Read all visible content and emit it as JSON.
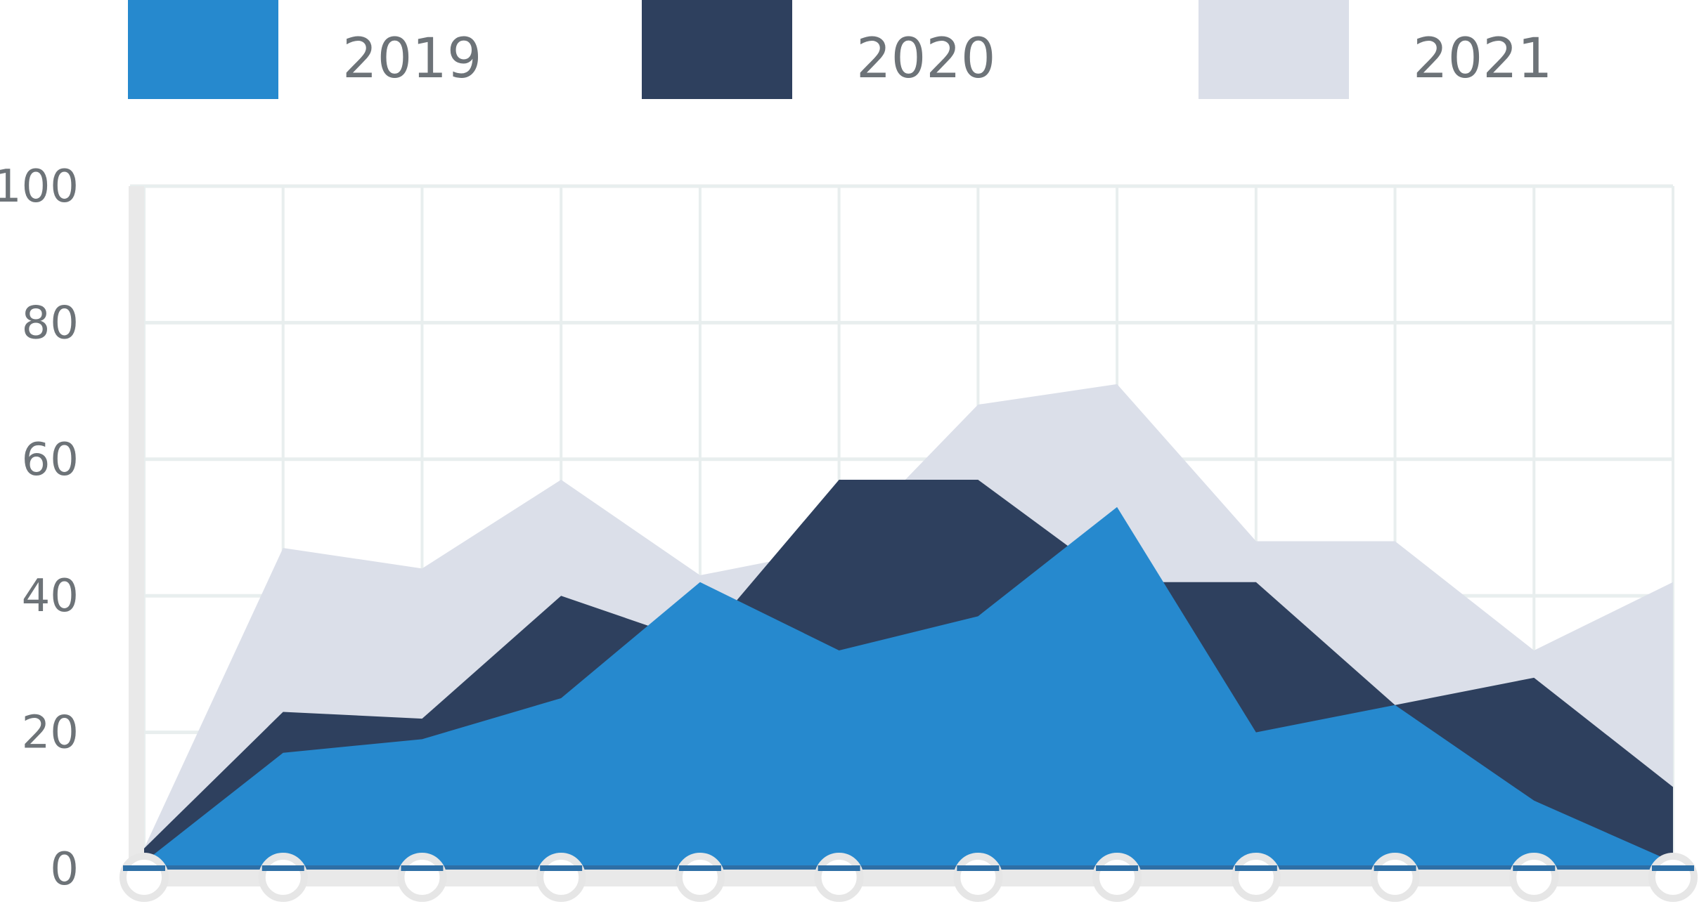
{
  "chart_data": {
    "type": "area",
    "title": "",
    "xlabel": "",
    "ylabel": "",
    "ylim": [
      0,
      100
    ],
    "yticks": [
      "0",
      "20",
      "40",
      "60",
      "80",
      "100"
    ],
    "grid": true,
    "legend_position": "top",
    "x": [
      0,
      1,
      2,
      3,
      4,
      5,
      6,
      7,
      8,
      9,
      10,
      11
    ],
    "series": [
      {
        "name": "2021",
        "color": "#dbdfe9",
        "values": [
          3,
          47,
          44,
          57,
          43,
          47,
          68,
          71,
          48,
          48,
          32,
          42
        ]
      },
      {
        "name": "2020",
        "color": "#2e405e",
        "values": [
          3,
          23,
          22,
          40,
          33,
          57,
          57,
          42,
          42,
          24,
          28,
          12
        ]
      },
      {
        "name": "2019",
        "color": "#2689ce",
        "values": [
          1,
          17,
          19,
          25,
          42,
          32,
          37,
          53,
          20,
          24,
          10,
          1
        ]
      }
    ]
  }
}
